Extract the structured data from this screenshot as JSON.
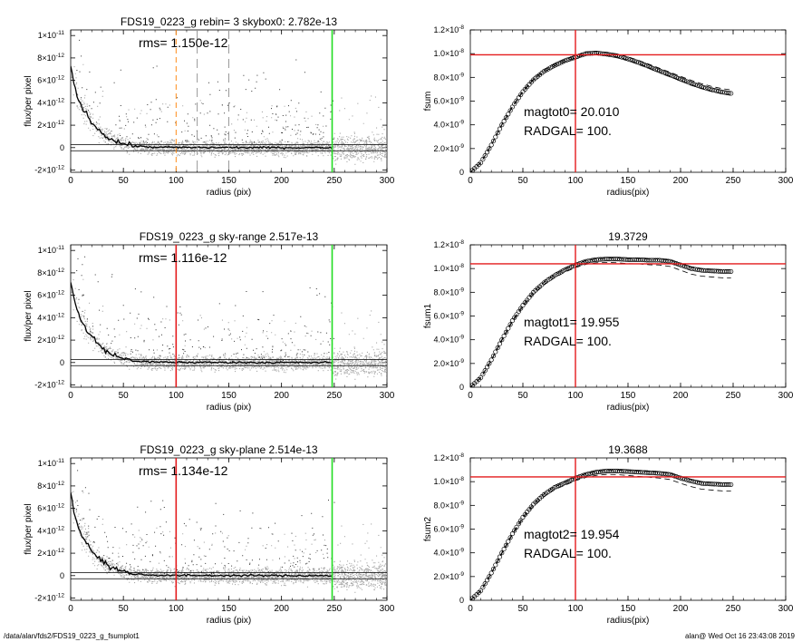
{
  "footer": {
    "path": "/data/alan/fds2/FDS19_0223_g_fsumplot1",
    "stamp": "alan@  Wed Oct 16 23:43:08 2019"
  },
  "colors": {
    "scatter": "#a9a9a9",
    "profile": "#000000",
    "red": "#e41a1c",
    "green": "#22dd22",
    "orange": "#ff8c1a"
  },
  "chart_data": [
    {
      "type": "scatter",
      "title": "FDS19_0223_g rebin= 3    skybox0:  2.782e-13",
      "annotations": [
        "rms= 1.150e-12"
      ],
      "xlabel": "radius (pix)",
      "ylabel": "flux/per pixel",
      "xlim": [
        0,
        300
      ],
      "ylim": [
        -2.2e-12,
        1.05e-11
      ],
      "xticks": [
        "0",
        "50",
        "100",
        "150",
        "200",
        "250",
        "300"
      ],
      "yticks": [
        {
          "v": 1e-11,
          "m": "1",
          "e": "-11"
        },
        {
          "v": 8e-12,
          "m": "8",
          "e": "-12"
        },
        {
          "v": 6e-12,
          "m": "6",
          "e": "-12"
        },
        {
          "v": 4e-12,
          "m": "4",
          "e": "-12"
        },
        {
          "v": 2e-12,
          "m": "2",
          "e": "-12"
        },
        {
          "v": 0,
          "m": "0",
          "e": ""
        },
        {
          "v": -2e-12,
          "m": "-2",
          "e": "-12"
        }
      ],
      "hlines": [
        2.8e-13,
        -2.8e-13
      ],
      "vlines": [
        {
          "x": 100,
          "color": "#ff8c1a",
          "style": "dash"
        },
        {
          "x": 120,
          "color": "#999999",
          "style": "dash"
        },
        {
          "x": 150,
          "color": "#999999",
          "style": "dash"
        },
        {
          "x": 248,
          "color": "#22dd22",
          "style": "solid"
        }
      ],
      "profile": {
        "x": [
          0,
          3,
          6,
          10,
          15,
          20,
          25,
          30,
          35,
          40,
          45,
          50,
          55,
          60,
          70,
          80,
          100,
          120,
          150,
          200,
          248
        ],
        "y": [
          7.3e-12,
          5.8e-12,
          4.7e-12,
          3.7e-12,
          2.9e-12,
          2.3e-12,
          1.75e-12,
          1.3e-12,
          9.5e-13,
          7e-13,
          5e-13,
          3.5e-13,
          2.5e-13,
          1.5e-13,
          8e-14,
          4e-14,
          2e-14,
          1e-14,
          1e-14,
          0.0,
          0.0
        ]
      }
    },
    {
      "type": "line",
      "title": "",
      "annotations": [
        "magtot0=  20.010",
        "RADGAL=    100."
      ],
      "xlabel": "radius(pix)",
      "ylabel": "fsum",
      "xlim": [
        0,
        300
      ],
      "ylim": [
        0,
        1.2e-08
      ],
      "xticks": [
        "0",
        "50",
        "100",
        "150",
        "200",
        "250",
        "300"
      ],
      "yticks": [
        {
          "v": 0,
          "m": "0",
          "e": ""
        },
        {
          "v": 2e-09,
          "m": "2.0×10",
          "e": "-9"
        },
        {
          "v": 4e-09,
          "m": "4.0×10",
          "e": "-9"
        },
        {
          "v": 6e-09,
          "m": "6.0×10",
          "e": "-9"
        },
        {
          "v": 8e-09,
          "m": "8.0×10",
          "e": "-9"
        },
        {
          "v": 1e-08,
          "m": "1.0×10",
          "e": "-8"
        },
        {
          "v": 1.2e-08,
          "m": "1.2×10",
          "e": "-8"
        }
      ],
      "hline": 9.9e-09,
      "vline": 100,
      "curve": {
        "x": [
          0,
          10,
          20,
          30,
          40,
          50,
          60,
          70,
          80,
          90,
          100,
          110,
          120,
          130,
          140,
          150,
          160,
          170,
          180,
          190,
          200,
          210,
          220,
          230,
          240,
          248
        ],
        "y": [
          0,
          8e-10,
          2.3e-09,
          4e-09,
          5.5e-09,
          6.8e-09,
          7.8e-09,
          8.5e-09,
          9e-09,
          9.4e-09,
          9.7e-09,
          1e-08,
          1.005e-08,
          9.95e-09,
          9.8e-09,
          9.55e-09,
          9.25e-09,
          8.9e-09,
          8.55e-09,
          8.2e-09,
          7.85e-09,
          7.5e-09,
          7.2e-09,
          6.95e-09,
          6.75e-09,
          6.65e-09
        ]
      },
      "band": [
        3e-10,
        1.5e-10
      ]
    },
    {
      "type": "scatter",
      "title": "FDS19_0223_g sky-range  2.517e-13",
      "annotations": [
        "rms= 1.116e-12"
      ],
      "xlabel": "radius (pix)",
      "ylabel": "flux/per pixel",
      "xlim": [
        0,
        300
      ],
      "ylim": [
        -2.2e-12,
        1.05e-11
      ],
      "xticks": [
        "0",
        "50",
        "100",
        "150",
        "200",
        "250",
        "300"
      ],
      "yticks": [
        {
          "v": 1e-11,
          "m": "1",
          "e": "-11"
        },
        {
          "v": 8e-12,
          "m": "8",
          "e": "-12"
        },
        {
          "v": 6e-12,
          "m": "6",
          "e": "-12"
        },
        {
          "v": 4e-12,
          "m": "4",
          "e": "-12"
        },
        {
          "v": 2e-12,
          "m": "2",
          "e": "-12"
        },
        {
          "v": 0,
          "m": "0",
          "e": ""
        },
        {
          "v": -2e-12,
          "m": "-2",
          "e": "-12"
        }
      ],
      "hlines": [
        2.8e-13,
        -2.8e-13
      ],
      "vlines": [
        {
          "x": 100,
          "color": "#e41a1c",
          "style": "solid"
        },
        {
          "x": 248,
          "color": "#22dd22",
          "style": "solid"
        }
      ],
      "profile": {
        "x": [
          0,
          3,
          6,
          10,
          15,
          20,
          25,
          30,
          35,
          40,
          45,
          50,
          55,
          60,
          70,
          80,
          100,
          120,
          150,
          200,
          248
        ],
        "y": [
          7.3e-12,
          5.8e-12,
          4.7e-12,
          3.7e-12,
          2.9e-12,
          2.3e-12,
          1.75e-12,
          1.3e-12,
          9.5e-13,
          7e-13,
          5e-13,
          3.5e-13,
          2.5e-13,
          1.5e-13,
          8e-14,
          4e-14,
          2e-14,
          1e-14,
          1e-14,
          0.0,
          0.0
        ]
      }
    },
    {
      "type": "line",
      "title": "19.3729",
      "annotations": [
        "magtot1=  19.955",
        "RADGAL=    100."
      ],
      "xlabel": "radius(pix)",
      "ylabel": "fsum1",
      "xlim": [
        0,
        300
      ],
      "ylim": [
        0,
        1.2e-08
      ],
      "xticks": [
        "0",
        "50",
        "100",
        "150",
        "200",
        "250",
        "300"
      ],
      "yticks": [
        {
          "v": 0,
          "m": "0",
          "e": ""
        },
        {
          "v": 2e-09,
          "m": "2.0×10",
          "e": "-9"
        },
        {
          "v": 4e-09,
          "m": "4.0×10",
          "e": "-9"
        },
        {
          "v": 6e-09,
          "m": "6.0×10",
          "e": "-9"
        },
        {
          "v": 8e-09,
          "m": "8.0×10",
          "e": "-9"
        },
        {
          "v": 1e-08,
          "m": "1.0×10",
          "e": "-8"
        },
        {
          "v": 1.2e-08,
          "m": "1.2×10",
          "e": "-8"
        }
      ],
      "hline": 1.04e-08,
      "vline": 100,
      "curve": {
        "x": [
          0,
          10,
          20,
          30,
          40,
          50,
          60,
          70,
          80,
          90,
          100,
          110,
          120,
          130,
          140,
          150,
          160,
          170,
          180,
          190,
          200,
          210,
          220,
          230,
          240,
          248
        ],
        "y": [
          0,
          8e-10,
          2.3e-09,
          4e-09,
          5.6e-09,
          6.9e-09,
          8e-09,
          8.8e-09,
          9.4e-09,
          9.9e-09,
          1.03e-08,
          1.06e-08,
          1.075e-08,
          1.08e-08,
          1.08e-08,
          1.075e-08,
          1.075e-08,
          1.07e-08,
          1.07e-08,
          1.06e-08,
          1.03e-08,
          1e-08,
          9.85e-09,
          9.8e-09,
          9.75e-09,
          9.75e-09
        ]
      },
      "band": [
        1.5e-10,
        5.5e-10
      ]
    },
    {
      "type": "scatter",
      "title": "FDS19_0223_g sky-plane  2.514e-13",
      "annotations": [
        "rms= 1.134e-12"
      ],
      "xlabel": "radius (pix)",
      "ylabel": "flux/per pixel",
      "xlim": [
        0,
        300
      ],
      "ylim": [
        -2.2e-12,
        1.05e-11
      ],
      "xticks": [
        "0",
        "50",
        "100",
        "150",
        "200",
        "250",
        "300"
      ],
      "yticks": [
        {
          "v": 1e-11,
          "m": "1",
          "e": "-11"
        },
        {
          "v": 8e-12,
          "m": "8",
          "e": "-12"
        },
        {
          "v": 6e-12,
          "m": "6",
          "e": "-12"
        },
        {
          "v": 4e-12,
          "m": "4",
          "e": "-12"
        },
        {
          "v": 2e-12,
          "m": "2",
          "e": "-12"
        },
        {
          "v": 0,
          "m": "0",
          "e": ""
        },
        {
          "v": -2e-12,
          "m": "-2",
          "e": "-12"
        }
      ],
      "hlines": [
        2.8e-13,
        -2.8e-13
      ],
      "vlines": [
        {
          "x": 100,
          "color": "#e41a1c",
          "style": "solid"
        },
        {
          "x": 248,
          "color": "#22dd22",
          "style": "solid"
        }
      ],
      "profile": {
        "x": [
          0,
          3,
          6,
          10,
          15,
          20,
          25,
          30,
          35,
          40,
          45,
          50,
          55,
          60,
          70,
          80,
          100,
          120,
          150,
          200,
          248
        ],
        "y": [
          7.3e-12,
          5.8e-12,
          4.7e-12,
          3.7e-12,
          2.9e-12,
          2.3e-12,
          1.75e-12,
          1.3e-12,
          9.5e-13,
          7e-13,
          5e-13,
          3.5e-13,
          2.5e-13,
          1.5e-13,
          8e-14,
          4e-14,
          2e-14,
          1e-14,
          1e-14,
          0.0,
          0.0
        ]
      }
    },
    {
      "type": "line",
      "title": "19.3688",
      "annotations": [
        "magtot2=  19.954",
        "RADGAL=    100."
      ],
      "xlabel": "radius(pix)",
      "ylabel": "fsum2",
      "xlim": [
        0,
        300
      ],
      "ylim": [
        0,
        1.2e-08
      ],
      "xticks": [
        "0",
        "50",
        "100",
        "150",
        "200",
        "250",
        "300"
      ],
      "yticks": [
        {
          "v": 0,
          "m": "0",
          "e": ""
        },
        {
          "v": 2e-09,
          "m": "2.0×10",
          "e": "-9"
        },
        {
          "v": 4e-09,
          "m": "4.0×10",
          "e": "-9"
        },
        {
          "v": 6e-09,
          "m": "6.0×10",
          "e": "-9"
        },
        {
          "v": 8e-09,
          "m": "8.0×10",
          "e": "-9"
        },
        {
          "v": 1e-08,
          "m": "1.0×10",
          "e": "-8"
        },
        {
          "v": 1.2e-08,
          "m": "1.2×10",
          "e": "-8"
        }
      ],
      "hline": 1.04e-08,
      "vline": 100,
      "curve": {
        "x": [
          0,
          10,
          20,
          30,
          40,
          50,
          60,
          70,
          80,
          90,
          100,
          110,
          120,
          130,
          140,
          150,
          160,
          170,
          180,
          190,
          200,
          210,
          220,
          230,
          240,
          248
        ],
        "y": [
          0,
          8e-10,
          2.3e-09,
          4e-09,
          5.6e-09,
          7e-09,
          8.1e-09,
          8.9e-09,
          9.5e-09,
          9.9e-09,
          1.03e-08,
          1.06e-08,
          1.08e-08,
          1.09e-08,
          1.09e-08,
          1.085e-08,
          1.08e-08,
          1.075e-08,
          1.07e-08,
          1.06e-08,
          1.03e-08,
          1.005e-08,
          9.85e-09,
          9.8e-09,
          9.75e-09,
          9.75e-09
        ]
      },
      "band": [
        1.5e-10,
        5.5e-10
      ]
    }
  ]
}
